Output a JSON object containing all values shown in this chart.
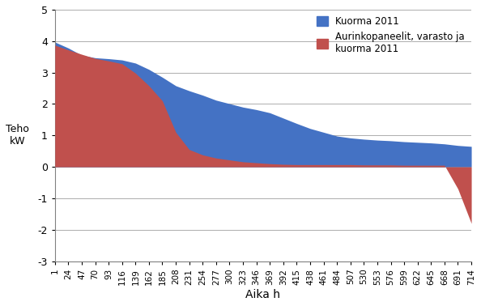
{
  "title": "",
  "ylabel_line1": "Teho",
  "ylabel_line2": "kW",
  "xlabel": "Aika h",
  "ylim": [
    -3,
    5
  ],
  "yticks": [
    -3,
    -2,
    -1,
    0,
    1,
    2,
    3,
    4,
    5
  ],
  "xtick_labels": [
    "1",
    "24",
    "47",
    "70",
    "93",
    "116",
    "139",
    "162",
    "185",
    "208",
    "231",
    "254",
    "277",
    "300",
    "323",
    "346",
    "369",
    "392",
    "415",
    "438",
    "461",
    "484",
    "507",
    "530",
    "553",
    "576",
    "599",
    "622",
    "645",
    "668",
    "691",
    "714"
  ],
  "xtick_positions": [
    0,
    23,
    46,
    69,
    92,
    115,
    138,
    161,
    184,
    207,
    230,
    253,
    276,
    299,
    322,
    345,
    368,
    391,
    414,
    437,
    460,
    483,
    506,
    529,
    552,
    575,
    598,
    621,
    644,
    667,
    690,
    713
  ],
  "blue_color": "#4472C4",
  "red_color": "#C0504D",
  "legend_blue": "Kuorma 2011",
  "legend_red": "Aurinkopaneelit, varasto ja\nkuorma 2011",
  "blue_x": [
    0,
    23,
    46,
    69,
    92,
    115,
    138,
    161,
    184,
    207,
    230,
    253,
    276,
    299,
    322,
    345,
    368,
    391,
    414,
    437,
    460,
    483,
    506,
    529,
    552,
    575,
    598,
    621,
    644,
    667,
    690,
    713
  ],
  "blue_y": [
    3.97,
    3.78,
    3.55,
    3.47,
    3.44,
    3.4,
    3.3,
    3.1,
    2.85,
    2.58,
    2.42,
    2.28,
    2.12,
    2.01,
    1.9,
    1.82,
    1.72,
    1.55,
    1.38,
    1.22,
    1.1,
    0.98,
    0.92,
    0.88,
    0.85,
    0.83,
    0.8,
    0.78,
    0.76,
    0.73,
    0.68,
    0.65
  ],
  "red_x": [
    0,
    23,
    46,
    69,
    92,
    115,
    138,
    161,
    184,
    207,
    230,
    253,
    276,
    299,
    322,
    345,
    368,
    391,
    414,
    437,
    460,
    483,
    506,
    529,
    552,
    575,
    598,
    621,
    644,
    667,
    690,
    713
  ],
  "red_y": [
    3.87,
    3.72,
    3.58,
    3.45,
    3.37,
    3.28,
    2.98,
    2.58,
    2.1,
    1.1,
    0.55,
    0.38,
    0.28,
    0.22,
    0.16,
    0.13,
    0.1,
    0.08,
    0.07,
    0.07,
    0.07,
    0.07,
    0.07,
    0.06,
    0.06,
    0.06,
    0.05,
    0.05,
    0.05,
    0.05,
    -0.7,
    -1.8
  ],
  "background_color": "#ffffff",
  "grid_color": "#a0a0a0",
  "figsize": [
    5.94,
    3.78
  ],
  "dpi": 100
}
